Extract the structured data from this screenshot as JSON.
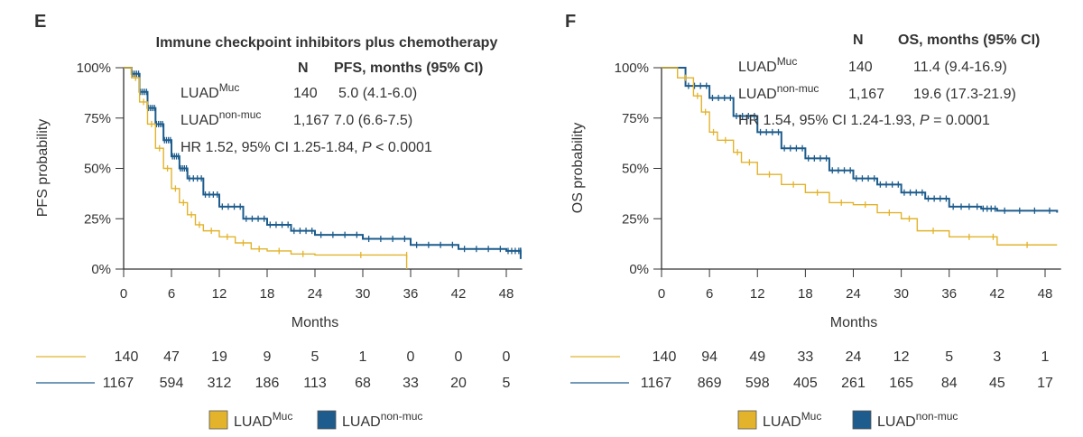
{
  "colors": {
    "muc": "#e2b32b",
    "nonmuc": "#1d5c8c"
  },
  "chart_data": [
    {
      "type": "line",
      "panel": "E",
      "title": "Immune checkpoint inhibitors plus chemotherapy",
      "xlabel": "Months",
      "ylabel": "PFS probability",
      "xlim": [
        0,
        50
      ],
      "ylim": [
        0,
        1
      ],
      "xticks": [
        "0",
        "6",
        "12",
        "18",
        "24",
        "30",
        "36",
        "42",
        "48"
      ],
      "yticks": [
        "0%",
        "25%",
        "50%",
        "75%",
        "100%"
      ],
      "stats": {
        "n_header": "N",
        "header": "PFS, months (95% CI)",
        "rows": [
          {
            "name": "LUAD",
            "sup": "Muc",
            "n": "140",
            "value": "5.0 (4.1-6.0)"
          },
          {
            "name": "LUAD",
            "sup": "non-muc",
            "n": "1,167",
            "value": "7.0 (6.6-7.5)"
          }
        ],
        "hr_pre": "HR 1.52, 95% CI 1.25-1.84, ",
        "hr_p": "P",
        "hr_post": " < 0.0001"
      },
      "series": [
        {
          "name": "LUADMuc",
          "at_risk": [
            "140",
            "47",
            "19",
            "9",
            "5",
            "1",
            "0",
            "0",
            "0"
          ],
          "points": [
            [
              0,
              1
            ],
            [
              1,
              0.95
            ],
            [
              2,
              0.83
            ],
            [
              3,
              0.72
            ],
            [
              4,
              0.6
            ],
            [
              5,
              0.5
            ],
            [
              6,
              0.4
            ],
            [
              7,
              0.33
            ],
            [
              8,
              0.27
            ],
            [
              9,
              0.22
            ],
            [
              10,
              0.19
            ],
            [
              12,
              0.16
            ],
            [
              14,
              0.13
            ],
            [
              16,
              0.1
            ],
            [
              18,
              0.09
            ],
            [
              21,
              0.075
            ],
            [
              24,
              0.07
            ],
            [
              35.5,
              0.07
            ],
            [
              35.5,
              0
            ]
          ]
        },
        {
          "name": "LUADnon-muc",
          "at_risk": [
            "1167",
            "594",
            "312",
            "186",
            "113",
            "68",
            "33",
            "20",
            "5"
          ],
          "points": [
            [
              0,
              1
            ],
            [
              1,
              0.97
            ],
            [
              2,
              0.88
            ],
            [
              3,
              0.8
            ],
            [
              4,
              0.72
            ],
            [
              5,
              0.64
            ],
            [
              6,
              0.56
            ],
            [
              7,
              0.5
            ],
            [
              8,
              0.45
            ],
            [
              10,
              0.37
            ],
            [
              12,
              0.31
            ],
            [
              15,
              0.25
            ],
            [
              18,
              0.22
            ],
            [
              21,
              0.19
            ],
            [
              24,
              0.17
            ],
            [
              30,
              0.15
            ],
            [
              36,
              0.12
            ],
            [
              42,
              0.1
            ],
            [
              48,
              0.09
            ],
            [
              49.8,
              0.09
            ],
            [
              49.8,
              0.05
            ]
          ]
        }
      ],
      "legend": [
        {
          "name": "LUAD",
          "sup": "Muc"
        },
        {
          "name": "LUAD",
          "sup": "non-muc"
        }
      ]
    },
    {
      "type": "line",
      "panel": "F",
      "title": "",
      "xlabel": "Months",
      "ylabel": "OS probability",
      "xlim": [
        0,
        50
      ],
      "ylim": [
        0,
        1
      ],
      "xticks": [
        "0",
        "6",
        "12",
        "18",
        "24",
        "30",
        "36",
        "42",
        "48"
      ],
      "yticks": [
        "0%",
        "25%",
        "50%",
        "75%",
        "100%"
      ],
      "stats": {
        "n_header": "N",
        "header": "OS, months (95% CI)",
        "rows": [
          {
            "name": "LUAD",
            "sup": "Muc",
            "n": "140",
            "value": "11.4 (9.4-16.9)"
          },
          {
            "name": "LUAD",
            "sup": "non-muc",
            "n": "1,167",
            "value": "19.6 (17.3-21.9)"
          }
        ],
        "hr_pre": "HR 1.54, 95% CI 1.24-1.93, ",
        "hr_p": "P",
        "hr_post": " = 0.0001"
      },
      "series": [
        {
          "name": "LUADMuc",
          "at_risk": [
            "140",
            "94",
            "49",
            "33",
            "24",
            "12",
            "5",
            "3",
            "1"
          ],
          "points": [
            [
              0,
              1
            ],
            [
              2,
              0.95
            ],
            [
              4,
              0.86
            ],
            [
              5,
              0.78
            ],
            [
              6,
              0.68
            ],
            [
              7,
              0.64
            ],
            [
              9,
              0.58
            ],
            [
              10,
              0.53
            ],
            [
              12,
              0.47
            ],
            [
              15,
              0.42
            ],
            [
              18,
              0.38
            ],
            [
              21,
              0.33
            ],
            [
              24,
              0.32
            ],
            [
              27,
              0.28
            ],
            [
              30,
              0.25
            ],
            [
              32,
              0.19
            ],
            [
              36,
              0.16
            ],
            [
              41,
              0.16
            ],
            [
              42,
              0.12
            ],
            [
              49.5,
              0.12
            ]
          ]
        },
        {
          "name": "LUADnon-muc",
          "at_risk": [
            "1167",
            "869",
            "598",
            "405",
            "261",
            "165",
            "84",
            "45",
            "17"
          ],
          "points": [
            [
              0,
              1
            ],
            [
              3,
              0.91
            ],
            [
              6,
              0.85
            ],
            [
              9,
              0.76
            ],
            [
              12,
              0.68
            ],
            [
              15,
              0.6
            ],
            [
              18,
              0.55
            ],
            [
              21,
              0.49
            ],
            [
              24,
              0.45
            ],
            [
              27,
              0.42
            ],
            [
              30,
              0.38
            ],
            [
              33,
              0.35
            ],
            [
              36,
              0.31
            ],
            [
              40,
              0.3
            ],
            [
              42,
              0.29
            ],
            [
              49.5,
              0.28
            ]
          ]
        }
      ],
      "legend": [
        {
          "name": "LUAD",
          "sup": "Muc"
        },
        {
          "name": "LUAD",
          "sup": "non-muc"
        }
      ]
    }
  ]
}
